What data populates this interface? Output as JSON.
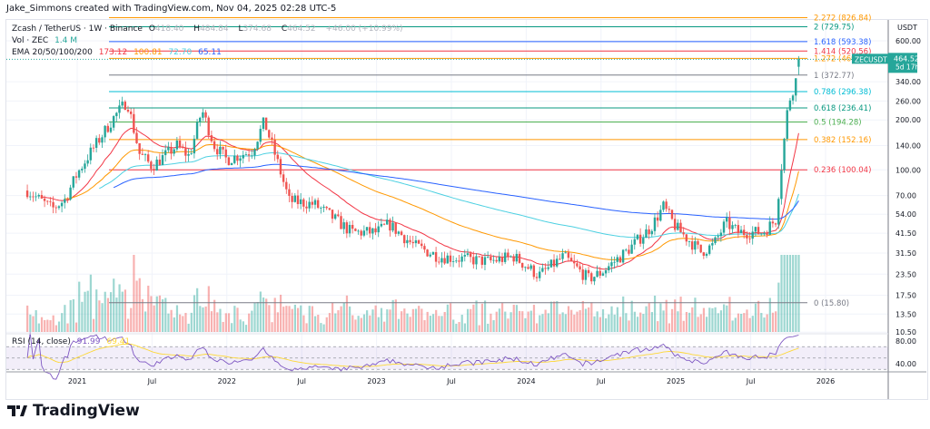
{
  "credit": "Jake_Simmons created with TradingView.com, Nov 04, 2025 02:28 UTC-5",
  "legend": {
    "symbol": "Zcash / TetherUS · 1W · Binance",
    "o_label": "O",
    "o": "418.40",
    "h_label": "H",
    "h": "484.84",
    "l_label": "L",
    "l": "374.68",
    "c_label": "C",
    "c": "464.52",
    "change": "+46.00 (+10.99%)",
    "vol_label": "Vol · ZEC",
    "vol": "1.4 M",
    "ema_label": "EMA 20/50/100/200",
    "ema20": "173.12",
    "ema50": "100.81",
    "ema100": "72.70",
    "ema200": "65.11",
    "rsi_label": "RSI (14, close)",
    "rsi": "91.99",
    "rsi_ma": "69.41"
  },
  "colors": {
    "up": "#26a69a",
    "down": "#ef5350",
    "ema20": "#f23645",
    "ema50": "#ff9800",
    "ema100": "#4dd0e1",
    "ema200": "#2962ff",
    "rsi": "#7e57c2",
    "rsi_ma": "#fdd835"
  },
  "price_axis": {
    "unit": "USDT",
    "ticks": [
      "600.00",
      "340.00",
      "260.00",
      "200.00",
      "140.00",
      "100.00",
      "70.00",
      "54.00",
      "41.50",
      "31.50",
      "23.50",
      "17.50",
      "13.50",
      "10.50"
    ],
    "scale": "log"
  },
  "price_tag": {
    "symbol": "ZECUSDT",
    "price": "464.52",
    "countdown": "5d 17h"
  },
  "rsi_axis": {
    "ticks": [
      "80.00",
      "40.00"
    ]
  },
  "time_axis": [
    "2021",
    "Jul",
    "2022",
    "Jul",
    "2023",
    "Jul",
    "2024",
    "Jul",
    "2025",
    "Jul",
    "2026"
  ],
  "fib_levels": [
    {
      "label": "2.272 (826.84)",
      "value": 826.84,
      "color": "#ff9800"
    },
    {
      "label": "2 (729.75)",
      "value": 729.75,
      "color": "#089981"
    },
    {
      "label": "1.618 (593.38)",
      "value": 593.38,
      "color": "#2962ff"
    },
    {
      "label": "1.414 (520.56)",
      "value": 520.56,
      "color": "#f23645"
    },
    {
      "label": "1.272 (469.8",
      "value": 469.8,
      "color": "#ff9800"
    },
    {
      "label": "1 (372.77)",
      "value": 372.77,
      "color": "#787b86"
    },
    {
      "label": "0.786 (296.38)",
      "value": 296.38,
      "color": "#00bcd4"
    },
    {
      "label": "0.618 (236.41)",
      "value": 236.41,
      "color": "#089981"
    },
    {
      "label": "0.5 (194.28)",
      "value": 194.28,
      "color": "#4caf50"
    },
    {
      "label": "0.382 (152.16)",
      "value": 152.16,
      "color": "#ff9800"
    },
    {
      "label": "0.236 (100.04)",
      "value": 100.04,
      "color": "#f23645"
    },
    {
      "label": "0 (15.80)",
      "value": 15.8,
      "color": "#787b86"
    }
  ],
  "chart_data": {
    "type": "candlestick",
    "title": "Zcash / TetherUS · 1W · Binance",
    "y_scale": "log",
    "ylim": [
      10.5,
      600
    ],
    "grid": true,
    "price_path": [
      [
        "2020-09",
        75
      ],
      [
        "2020-11",
        58
      ],
      [
        "2020-12",
        66
      ],
      [
        "2021-01",
        95
      ],
      [
        "2021-02",
        125
      ],
      [
        "2021-04",
        210
      ],
      [
        "2021-05",
        260
      ],
      [
        "2021-06",
        125
      ],
      [
        "2021-07",
        105
      ],
      [
        "2021-09",
        140
      ],
      [
        "2021-10",
        120
      ],
      [
        "2021-11",
        230
      ],
      [
        "2021-12",
        140
      ],
      [
        "2022-01",
        115
      ],
      [
        "2022-03",
        130
      ],
      [
        "2022-04",
        195
      ],
      [
        "2022-05",
        115
      ],
      [
        "2022-06",
        65
      ],
      [
        "2022-08",
        62
      ],
      [
        "2022-09",
        55
      ],
      [
        "2022-11",
        42
      ],
      [
        "2023-01",
        42
      ],
      [
        "2023-02",
        47
      ],
      [
        "2023-04",
        35
      ],
      [
        "2023-06",
        30
      ],
      [
        "2023-08",
        29
      ],
      [
        "2023-10",
        28
      ],
      [
        "2023-12",
        30
      ],
      [
        "2024-02",
        23
      ],
      [
        "2024-04",
        30
      ],
      [
        "2024-06",
        22
      ],
      [
        "2024-07",
        24
      ],
      [
        "2024-09",
        32
      ],
      [
        "2024-11",
        45
      ],
      [
        "2024-12",
        60
      ],
      [
        "2025-01",
        45
      ],
      [
        "2025-03",
        32
      ],
      [
        "2025-04",
        35
      ],
      [
        "2025-05",
        48
      ],
      [
        "2025-06",
        42
      ],
      [
        "2025-08",
        42
      ],
      [
        "2025-09",
        50
      ],
      [
        "2025-10",
        250
      ],
      [
        "2025-10-20",
        350
      ],
      [
        "2025-11",
        464.52
      ]
    ],
    "last_candle": {
      "open": 418.4,
      "high": 484.84,
      "low": 374.68,
      "close": 464.52
    }
  },
  "brand": "TradingView"
}
